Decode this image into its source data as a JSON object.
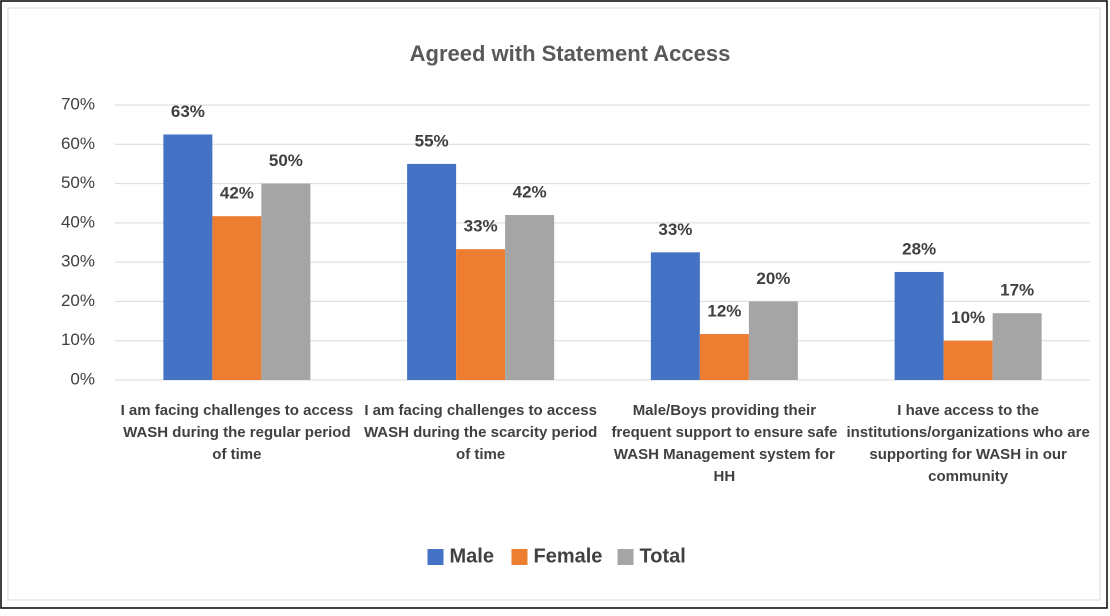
{
  "chart_data": {
    "type": "bar",
    "title": "Agreed with Statement Access",
    "categories": [
      "I am facing challenges to access WASH during the regular period of time",
      "I am facing challenges to access WASH during the scarcity period of time",
      "Male/Boys providing their frequent support to ensure safe WASH Management system for HH",
      "I have access to the institutions/organizations who are supporting for WASH in our community"
    ],
    "series": [
      {
        "name": "Male",
        "color": "#4472c4",
        "values": [
          62.5,
          55,
          32.5,
          27.5
        ],
        "value_labels": [
          "63%",
          "55%",
          "33%",
          "28%"
        ]
      },
      {
        "name": "Female",
        "color": "#ed7d31",
        "values": [
          41.7,
          33.3,
          11.7,
          10
        ],
        "value_labels": [
          "42%",
          "33%",
          "12%",
          "10%"
        ]
      },
      {
        "name": "Total",
        "color": "#a5a5a5",
        "values": [
          50,
          42,
          20,
          17
        ],
        "value_labels": [
          "50%",
          "42%",
          "20%",
          "17%"
        ]
      }
    ],
    "ylim": [
      0,
      70
    ],
    "yticks": [
      {
        "value": 0,
        "label": "0%"
      },
      {
        "value": 10,
        "label": "10%"
      },
      {
        "value": 20,
        "label": "20%"
      },
      {
        "value": 30,
        "label": "30%"
      },
      {
        "value": 40,
        "label": "40%"
      },
      {
        "value": 50,
        "label": "50%"
      },
      {
        "value": 60,
        "label": "60%"
      },
      {
        "value": 70,
        "label": "70%"
      }
    ],
    "grid": true,
    "legend": "bottom"
  }
}
